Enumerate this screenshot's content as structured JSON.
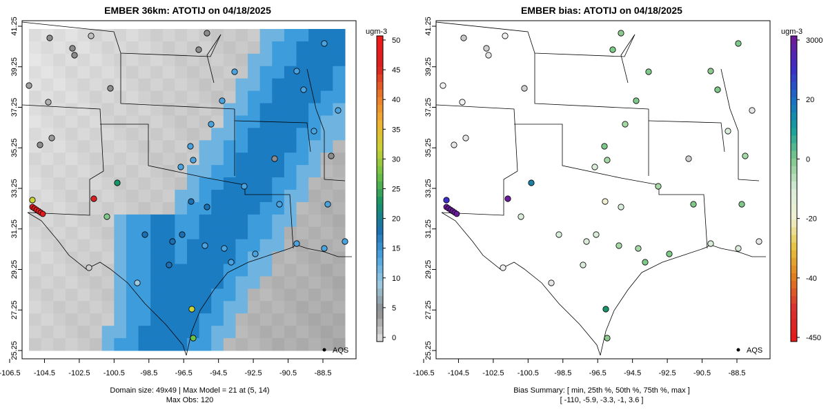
{
  "panels": [
    {
      "id": "left",
      "title": "EMBER 36km: ATOTIJ on 04/18/2025",
      "x_ticks": [
        "-106.5",
        "-104.5",
        "-102.5",
        "-100.5",
        "-98.5",
        "-96.5",
        "-94.5",
        "-92.5",
        "-90.5",
        "-88.5"
      ],
      "y_ticks": [
        "41.25",
        "39.25",
        "37.25",
        "35.25",
        "33.25",
        "31.25",
        "29.25",
        "27.25",
        "25.25"
      ],
      "legend_label": "AQS",
      "footer": [
        "Domain size: 49x49 | Max Model = 21 at (5, 14)",
        "Max Obs: 120"
      ],
      "colorbar": {
        "unit": "ugm-3",
        "labels": [
          "50",
          "45",
          "40",
          "35",
          "30",
          "25",
          "20",
          "15",
          "10",
          "5",
          "0"
        ]
      }
    },
    {
      "id": "right",
      "title": "EMBER bias: ATOTIJ on 04/18/2025",
      "x_ticks": [
        "-106.5",
        "-104.5",
        "-102.5",
        "-100.5",
        "-98.5",
        "-96.5",
        "-94.5",
        "-92.5",
        "-90.5",
        "-88.5"
      ],
      "y_ticks": [
        "41.25",
        "39.25",
        "37.25",
        "35.25",
        "33.25",
        "31.25",
        "29.25",
        "27.25",
        "25.25"
      ],
      "legend_label": "AQS",
      "footer": [
        "Bias Summary: [ min, 25th %, 50th %, 75th %, max ]",
        "[ -110,   -5.9,   -3.3,   -1,   3.6 ]"
      ],
      "colorbar": {
        "unit": "ugm-3",
        "labels": [
          "3000",
          "20",
          "0",
          "-20",
          "-40",
          "-450"
        ]
      }
    }
  ],
  "colors": {
    "concentration_scale": [
      "#d9d9d9",
      "#8c8c8c",
      "#9ecae1",
      "#4aa3df",
      "#1c6fb0",
      "#199466",
      "#6cbf45",
      "#c9d236",
      "#f2b134",
      "#e8742a",
      "#d92020",
      "#ee1a1a"
    ],
    "bias_scale": [
      "#6a1b9a",
      "#3b2fc9",
      "#1a6fc4",
      "#15a09b",
      "#7ec88a",
      "#d9ecd9",
      "#f0f0d0",
      "#e6c33a",
      "#e07b1f",
      "#d93030",
      "#e31a1c"
    ]
  }
}
